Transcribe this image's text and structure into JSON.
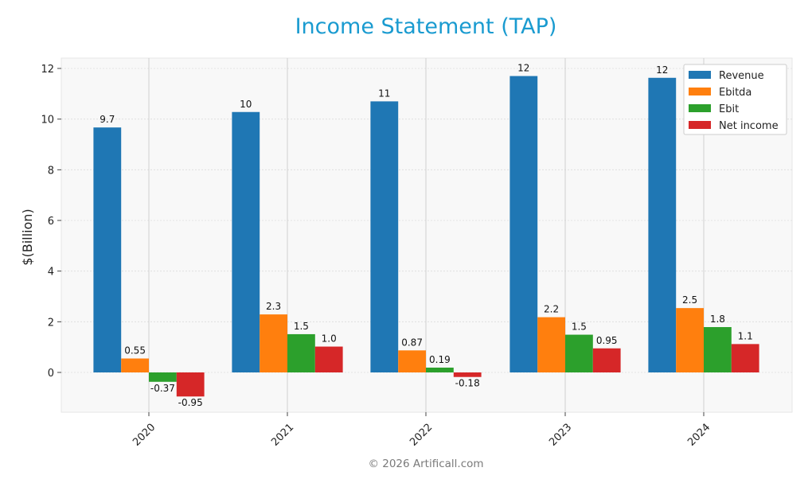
{
  "chart_data": {
    "type": "bar",
    "title": "Income Statement (TAP)",
    "ylabel": "$(Billion)",
    "xlabel": "",
    "categories": [
      "2020",
      "2021",
      "2022",
      "2023",
      "2024"
    ],
    "ylim": [
      -1.6,
      12.4
    ],
    "yticks": [
      0,
      2,
      4,
      6,
      8,
      10,
      12
    ],
    "grid": true,
    "legend_position": "top-right",
    "series": [
      {
        "name": "Revenue",
        "color": "#1f77b4",
        "values": [
          9.67,
          10.28,
          10.7,
          11.7,
          11.63
        ],
        "labels": [
          "9.7",
          "10",
          "11",
          "12",
          "12"
        ]
      },
      {
        "name": "Ebitda",
        "color": "#ff7f0e",
        "values": [
          0.55,
          2.29,
          0.87,
          2.18,
          2.54
        ],
        "labels": [
          "0.55",
          "2.3",
          "0.87",
          "2.2",
          "2.5"
        ]
      },
      {
        "name": "Ebit",
        "color": "#2ca02c",
        "values": [
          -0.37,
          1.51,
          0.19,
          1.49,
          1.79
        ],
        "labels": [
          "-0.37",
          "1.5",
          "0.19",
          "1.5",
          "1.8"
        ]
      },
      {
        "name": "Net income",
        "color": "#d62728",
        "values": [
          -0.95,
          1.02,
          -0.18,
          0.95,
          1.12
        ],
        "labels": [
          "-0.95",
          "1.0",
          "-0.18",
          "0.95",
          "1.1"
        ]
      }
    ]
  },
  "footer": "© 2026 Artificall.com"
}
